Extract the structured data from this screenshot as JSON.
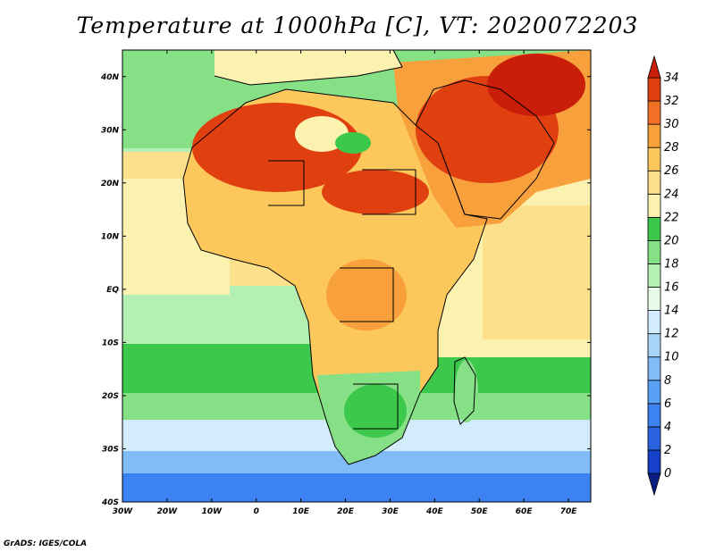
{
  "title": "Temperature at 1000hPa [C], VT: 2020072203",
  "footer": "GrADS: IGES/COLA",
  "map": {
    "lon_range": [
      -30,
      75
    ],
    "lat_range": [
      -40,
      45
    ],
    "lon_ticks": [
      {
        "value": -30,
        "label": "30W"
      },
      {
        "value": -20,
        "label": "20W"
      },
      {
        "value": -10,
        "label": "10W"
      },
      {
        "value": 0,
        "label": "0"
      },
      {
        "value": 10,
        "label": "10E"
      },
      {
        "value": 20,
        "label": "20E"
      },
      {
        "value": 30,
        "label": "30E"
      },
      {
        "value": 40,
        "label": "40E"
      },
      {
        "value": 50,
        "label": "50E"
      },
      {
        "value": 60,
        "label": "60E"
      },
      {
        "value": 70,
        "label": "70E"
      }
    ],
    "lat_ticks": [
      {
        "value": 40,
        "label": "40N"
      },
      {
        "value": 30,
        "label": "30N"
      },
      {
        "value": 20,
        "label": "20N"
      },
      {
        "value": 10,
        "label": "10N"
      },
      {
        "value": 0,
        "label": "EQ"
      },
      {
        "value": -10,
        "label": "10S"
      },
      {
        "value": -20,
        "label": "20S"
      },
      {
        "value": -30,
        "label": "30S"
      },
      {
        "value": -40,
        "label": "40S"
      }
    ]
  },
  "colorbar": {
    "levels": [
      "0",
      "2",
      "4",
      "6",
      "8",
      "10",
      "12",
      "14",
      "16",
      "18",
      "20",
      "22",
      "24",
      "26",
      "28",
      "30",
      "32",
      "34"
    ],
    "colors": [
      "#0a1e82",
      "#1640c8",
      "#2a62e0",
      "#3c82f0",
      "#5aa0f5",
      "#82bcf8",
      "#a8d4fa",
      "#d2ecfc",
      "#e8fcec",
      "#b4f0b4",
      "#86e086",
      "#3cc84a",
      "#fcf2b0",
      "#fce08c",
      "#fcc85c",
      "#f8a03c",
      "#f07028",
      "#e04010",
      "#c81e0a"
    ],
    "color_names": [
      "lt0",
      "0-2",
      "2-4",
      "4-6",
      "6-8",
      "8-10",
      "10-12",
      "12-14",
      "14-16",
      "16-18",
      "18-20",
      "20-22",
      "22-24",
      "24-26",
      "26-28",
      "28-30",
      "30-32",
      "32-34",
      "gt34"
    ]
  }
}
